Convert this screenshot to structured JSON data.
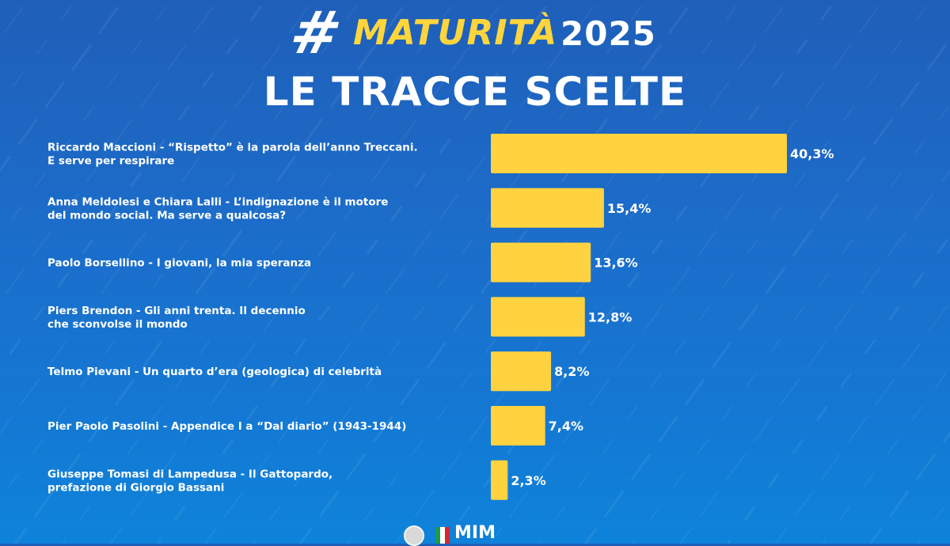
{
  "header": {
    "hashtag_symbol": "#",
    "hashtag_word": "MATURITÀ",
    "hashtag_year": "2025",
    "title": "LE TRACCE SCELTE"
  },
  "chart_data": {
    "type": "bar",
    "orientation": "horizontal",
    "categories": [
      [
        "Riccardo Maccioni - “Rispetto” è la parola dell’anno Treccani.",
        "E serve per respirare"
      ],
      [
        "Anna Meldolesi e Chiara Lalli - L’indignazione è il motore",
        "del mondo social. Ma serve a qualcosa?"
      ],
      [
        "Paolo Borsellino - I giovani, la mia speranza"
      ],
      [
        "Piers Brendon - Gli anni trenta. Il decennio",
        "che sconvolse il mondo"
      ],
      [
        "Telmo Pievani - Un quarto d’era (geologica) di celebrità"
      ],
      [
        "Pier Paolo Pasolini - Appendice I a “Dal diario” (1943-1944)"
      ],
      [
        "Giuseppe Tomasi di Lampedusa - Il Gattopardo,",
        "prefazione di Giorgio Bassani"
      ]
    ],
    "values": [
      40.3,
      15.4,
      13.6,
      12.8,
      8.2,
      7.4,
      2.3
    ],
    "value_labels": [
      "40,3%",
      "15,4%",
      "13,6%",
      "12,8%",
      "8,2%",
      "7,4%",
      "2,3%"
    ],
    "unit": "%",
    "bar_color": "#ffd23f",
    "xlim": [
      0,
      40.3
    ],
    "grid": false,
    "legend": "none"
  },
  "footer": {
    "logo_text": "MIM"
  }
}
